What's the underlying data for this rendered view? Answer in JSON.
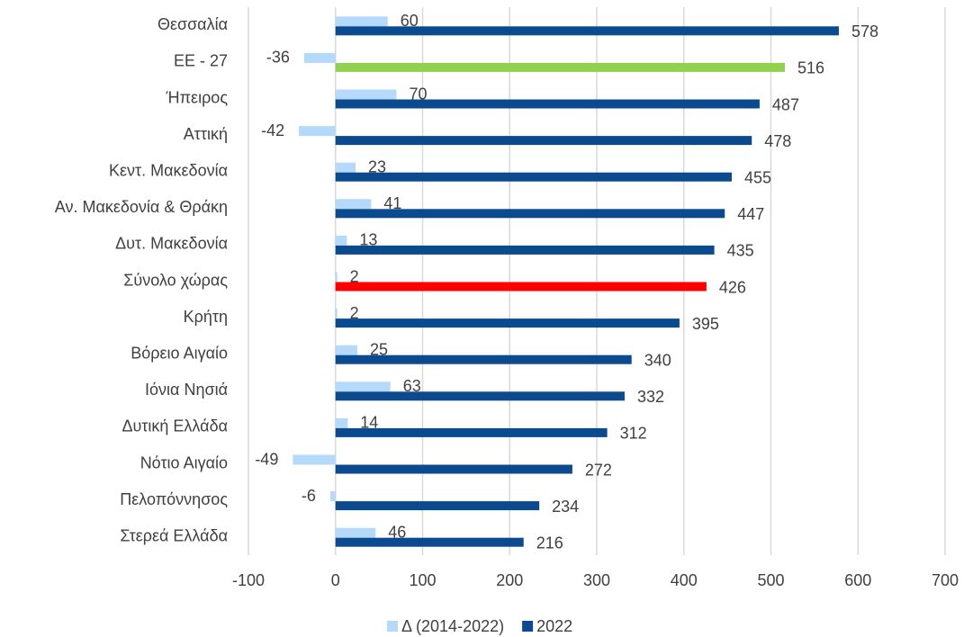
{
  "chart_data": {
    "type": "bar",
    "orientation": "horizontal",
    "categories": [
      "Θεσσαλία",
      "ΕΕ - 27",
      "Ήπειρος",
      "Αττική",
      "Κεντ. Μακεδονία",
      "Αν. Μακεδονία & Θράκη",
      "Δυτ. Μακεδονία",
      "Σύνολο χώρας",
      "Κρήτη",
      "Βόρειο Αιγαίο",
      "Ιόνια Νησιά",
      "Δυτική Ελλάδα",
      "Νότιο Αιγαίο",
      "Πελοπόννησος",
      "Στερεά Ελλάδα"
    ],
    "series": [
      {
        "name": "Δ (2014-2022)",
        "color": "#b4d9fa",
        "values": [
          60,
          -36,
          70,
          -42,
          23,
          41,
          13,
          2,
          2,
          25,
          63,
          14,
          -49,
          -6,
          46
        ]
      },
      {
        "name": "2022",
        "color": "#0b4a8f",
        "colors": [
          "#0b4a8f",
          "#92d050",
          "#0b4a8f",
          "#0b4a8f",
          "#0b4a8f",
          "#0b4a8f",
          "#0b4a8f",
          "#ff0000",
          "#0b4a8f",
          "#0b4a8f",
          "#0b4a8f",
          "#0b4a8f",
          "#0b4a8f",
          "#0b4a8f",
          "#0b4a8f"
        ],
        "values": [
          578,
          516,
          487,
          478,
          455,
          447,
          435,
          426,
          395,
          340,
          332,
          312,
          272,
          234,
          216
        ]
      }
    ],
    "xlim": [
      -100,
      700
    ],
    "xticks": [
      -100,
      0,
      100,
      200,
      300,
      400,
      500,
      600,
      700
    ],
    "grid": true,
    "legend": "bottom"
  }
}
